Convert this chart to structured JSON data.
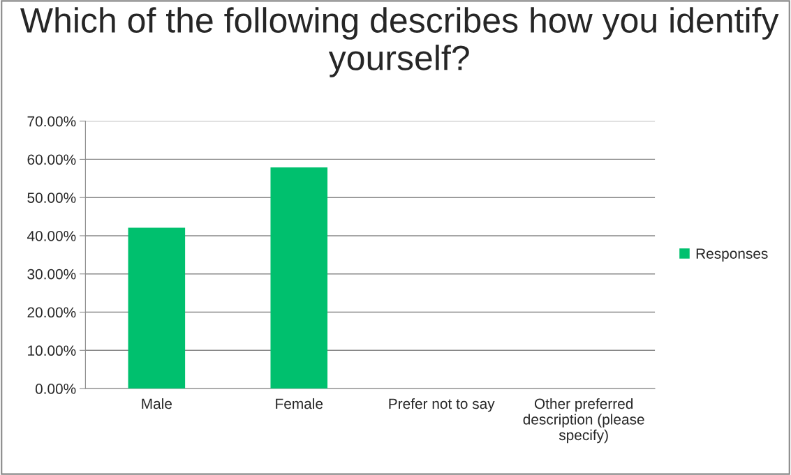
{
  "chart_data": {
    "type": "bar",
    "title": "Which of the following describes how you identify yourself?",
    "categories": [
      "Male",
      "Female",
      "Prefer not to say",
      "Other preferred description (please specify)"
    ],
    "series": [
      {
        "name": "Responses",
        "color": "#00c06e",
        "values": [
          42.1,
          57.9,
          0,
          0
        ]
      }
    ],
    "ylim": [
      0,
      70
    ],
    "yticks": [
      {
        "value": 0,
        "label": "0.00%"
      },
      {
        "value": 10,
        "label": "10.00%"
      },
      {
        "value": 20,
        "label": "20.00%"
      },
      {
        "value": 30,
        "label": "30.00%"
      },
      {
        "value": 40,
        "label": "40.00%"
      },
      {
        "value": 50,
        "label": "50.00%"
      },
      {
        "value": 60,
        "label": "60.00%"
      },
      {
        "value": 70,
        "label": "70.00%"
      }
    ],
    "grid": "y",
    "legend": "right"
  }
}
